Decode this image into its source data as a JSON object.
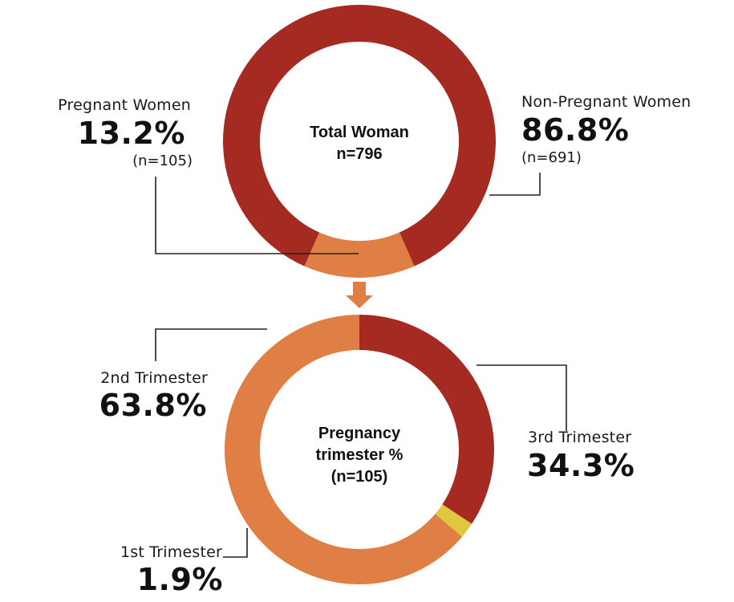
{
  "chart_data": [
    {
      "type": "pie",
      "variant": "donut",
      "center_label": [
        "Total Woman",
        "n=796"
      ],
      "slices": [
        {
          "name": "Non-Pregnant Women",
          "value": 86.8,
          "value_label": "86.8%",
          "n_label": "(n=691)",
          "color": "#a52a22"
        },
        {
          "name": "Pregnant Women",
          "value": 13.2,
          "value_label": "13.2%",
          "n_label": "(n=105)",
          "color": "#e07f45"
        }
      ]
    },
    {
      "type": "pie",
      "variant": "donut",
      "center_label": [
        "Pregnancy",
        "trimester %",
        "(n=105)"
      ],
      "slices": [
        {
          "name": "3rd Trimester",
          "value": 34.3,
          "value_label": "34.3%",
          "color": "#a52a22"
        },
        {
          "name": "2nd Trimester",
          "value": 63.8,
          "value_label": "63.8%",
          "color": "#e07f45"
        },
        {
          "name": "1st Trimester",
          "value": 1.9,
          "value_label": "1.9%",
          "color": "#dfc83e"
        }
      ]
    }
  ],
  "arrow_color": "#e07f45"
}
